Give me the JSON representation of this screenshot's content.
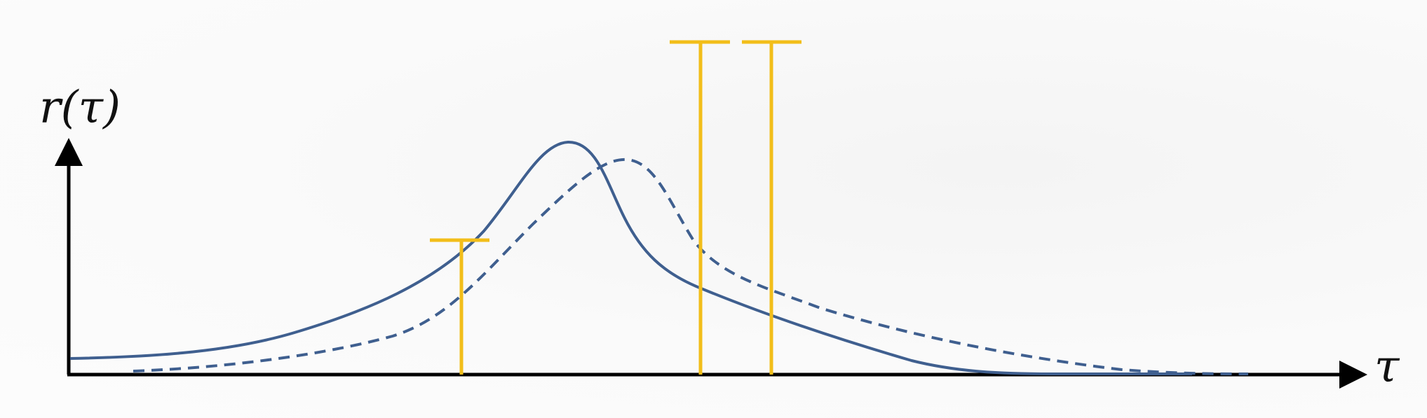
{
  "diagram": {
    "y_axis_label": "r(τ)",
    "x_axis_label": "τ",
    "colors": {
      "axis": "#000000",
      "curve": "#3f5f8f",
      "bars": "#f2be1a"
    },
    "curves": [
      {
        "id": "solid-curve",
        "style": "solid"
      },
      {
        "id": "dashed-curve",
        "style": "dashed"
      }
    ],
    "bars": [
      {
        "id": "bar-left",
        "relative_height": 0.41
      },
      {
        "id": "bar-middle",
        "relative_height": 1.0
      },
      {
        "id": "bar-right",
        "relative_height": 1.0
      }
    ]
  }
}
